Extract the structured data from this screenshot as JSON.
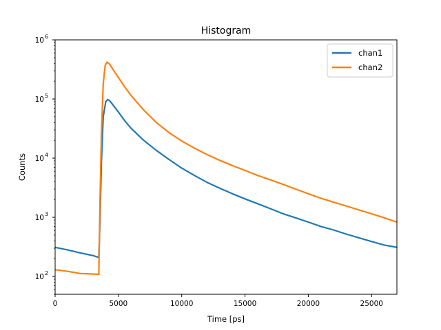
{
  "chart_data": {
    "type": "line",
    "title": "Histogram",
    "xlabel": "Time [ps]",
    "ylabel": "Counts",
    "xlim": [
      0,
      27000
    ],
    "ylim": [
      50,
      1000000
    ],
    "yscale": "log",
    "grid": false,
    "legend": "top-right",
    "x_ticks": [
      {
        "value": 0,
        "label": "0"
      },
      {
        "value": 5000,
        "label": "5000"
      },
      {
        "value": 10000,
        "label": "10000"
      },
      {
        "value": 15000,
        "label": "15000"
      },
      {
        "value": 20000,
        "label": "20000"
      },
      {
        "value": 25000,
        "label": "25000"
      }
    ],
    "y_ticks": [
      {
        "value": 100,
        "base": "10",
        "exp": "2"
      },
      {
        "value": 1000,
        "base": "10",
        "exp": "3"
      },
      {
        "value": 10000,
        "base": "10",
        "exp": "4"
      },
      {
        "value": 100000,
        "base": "10",
        "exp": "5"
      },
      {
        "value": 1000000,
        "base": "10",
        "exp": "6"
      }
    ],
    "series": [
      {
        "name": "chan1",
        "color": "#1f77b4",
        "points": [
          [
            0,
            310
          ],
          [
            1000,
            280
          ],
          [
            2000,
            250
          ],
          [
            3000,
            225
          ],
          [
            3450,
            210
          ],
          [
            3550,
            900
          ],
          [
            3650,
            8000
          ],
          [
            3800,
            50000
          ],
          [
            4000,
            90000
          ],
          [
            4150,
            98000
          ],
          [
            4300,
            94000
          ],
          [
            4600,
            78000
          ],
          [
            5000,
            60000
          ],
          [
            5500,
            43000
          ],
          [
            6000,
            32000
          ],
          [
            7000,
            20000
          ],
          [
            8000,
            13500
          ],
          [
            9000,
            9500
          ],
          [
            10000,
            6800
          ],
          [
            11000,
            5100
          ],
          [
            12000,
            3900
          ],
          [
            13000,
            3100
          ],
          [
            14000,
            2500
          ],
          [
            15000,
            2050
          ],
          [
            16000,
            1700
          ],
          [
            17000,
            1400
          ],
          [
            18000,
            1150
          ],
          [
            19000,
            980
          ],
          [
            20000,
            830
          ],
          [
            21000,
            700
          ],
          [
            22000,
            610
          ],
          [
            23000,
            520
          ],
          [
            24000,
            450
          ],
          [
            25000,
            390
          ],
          [
            26000,
            340
          ],
          [
            27000,
            310
          ]
        ]
      },
      {
        "name": "chan2",
        "color": "#ff7f0e",
        "points": [
          [
            0,
            130
          ],
          [
            1000,
            122
          ],
          [
            2000,
            112
          ],
          [
            3000,
            110
          ],
          [
            3450,
            108
          ],
          [
            3550,
            2000
          ],
          [
            3650,
            25000
          ],
          [
            3800,
            180000
          ],
          [
            3950,
            370000
          ],
          [
            4100,
            420000
          ],
          [
            4300,
            390000
          ],
          [
            4600,
            310000
          ],
          [
            5000,
            230000
          ],
          [
            5500,
            160000
          ],
          [
            6000,
            115000
          ],
          [
            7000,
            65000
          ],
          [
            8000,
            40000
          ],
          [
            9000,
            27000
          ],
          [
            10000,
            19500
          ],
          [
            11000,
            14800
          ],
          [
            12000,
            11500
          ],
          [
            13000,
            9200
          ],
          [
            14000,
            7500
          ],
          [
            15000,
            6200
          ],
          [
            16000,
            5100
          ],
          [
            17000,
            4300
          ],
          [
            18000,
            3600
          ],
          [
            19000,
            3000
          ],
          [
            20000,
            2500
          ],
          [
            21000,
            2100
          ],
          [
            22000,
            1800
          ],
          [
            23000,
            1550
          ],
          [
            24000,
            1330
          ],
          [
            25000,
            1150
          ],
          [
            26000,
            980
          ],
          [
            27000,
            830
          ]
        ]
      }
    ]
  }
}
